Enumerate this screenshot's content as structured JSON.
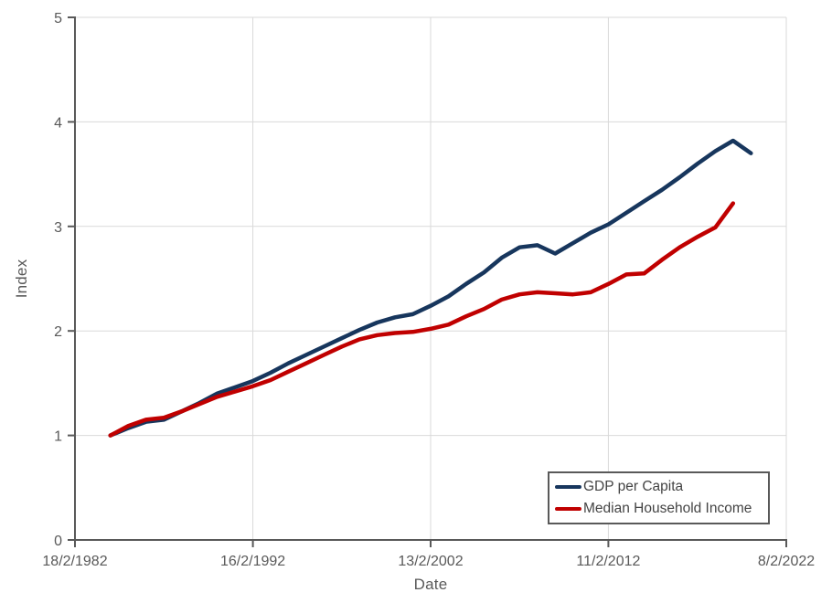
{
  "page": {
    "background": "#ffffff"
  },
  "chart_data": {
    "type": "line",
    "title": "",
    "xlabel": "Date",
    "ylabel": "Index",
    "xlim": [
      1982.13,
      2022.11
    ],
    "ylim": [
      0,
      5
    ],
    "grid": true,
    "legend_position": "bottom-right",
    "y_ticks": [
      0,
      1,
      2,
      3,
      4,
      5
    ],
    "x_ticks": [
      {
        "t": 1982.13,
        "label": "18/2/1982"
      },
      {
        "t": 1992.13,
        "label": "16/2/1992"
      },
      {
        "t": 2002.12,
        "label": "13/2/2002"
      },
      {
        "t": 2012.11,
        "label": "11/2/2012"
      },
      {
        "t": 2022.11,
        "label": "8/2/2022"
      }
    ],
    "colors": {
      "gridline": "#d9d9d9",
      "axis": "#595959",
      "tick_text": "#595959",
      "gdp_line": "#17365d",
      "income_line": "#c00000"
    },
    "series": [
      {
        "name": "GDP per Capita",
        "color": "#17365d",
        "x": [
          1984.12,
          1985.12,
          1986.12,
          1987.12,
          1988.12,
          1989.12,
          1990.12,
          1991.12,
          1992.12,
          1993.12,
          1994.12,
          1995.12,
          1996.12,
          1997.12,
          1998.12,
          1999.12,
          2000.12,
          2001.12,
          2002.12,
          2003.12,
          2004.12,
          2005.12,
          2006.12,
          2007.12,
          2008.12,
          2009.12,
          2010.12,
          2011.12,
          2012.12,
          2013.12,
          2014.12,
          2015.12,
          2016.12,
          2017.12,
          2018.12,
          2019.12,
          2020.12
        ],
        "values": [
          1.0,
          1.07,
          1.13,
          1.15,
          1.23,
          1.31,
          1.4,
          1.46,
          1.52,
          1.6,
          1.69,
          1.77,
          1.85,
          1.93,
          2.01,
          2.08,
          2.13,
          2.16,
          2.24,
          2.33,
          2.45,
          2.56,
          2.7,
          2.8,
          2.82,
          2.74,
          2.84,
          2.94,
          3.02,
          3.13,
          3.24,
          3.35,
          3.47,
          3.6,
          3.72,
          3.82,
          3.7
        ]
      },
      {
        "name": "Median Household Income",
        "color": "#c00000",
        "x": [
          1984.12,
          1985.12,
          1986.12,
          1987.12,
          1988.12,
          1989.12,
          1990.12,
          1991.12,
          1992.12,
          1993.12,
          1994.12,
          1995.12,
          1996.12,
          1997.12,
          1998.12,
          1999.12,
          2000.12,
          2001.12,
          2002.12,
          2003.12,
          2004.12,
          2005.12,
          2006.12,
          2007.12,
          2008.12,
          2009.12,
          2010.12,
          2011.12,
          2012.12,
          2013.12,
          2014.12,
          2015.12,
          2016.12,
          2017.12,
          2018.12,
          2019.12
        ],
        "values": [
          1.0,
          1.09,
          1.15,
          1.17,
          1.23,
          1.3,
          1.37,
          1.42,
          1.47,
          1.53,
          1.61,
          1.69,
          1.77,
          1.85,
          1.92,
          1.96,
          1.98,
          1.99,
          2.02,
          2.06,
          2.14,
          2.21,
          2.3,
          2.35,
          2.37,
          2.36,
          2.35,
          2.37,
          2.45,
          2.54,
          2.55,
          2.68,
          2.8,
          2.9,
          2.99,
          3.22
        ]
      }
    ]
  }
}
